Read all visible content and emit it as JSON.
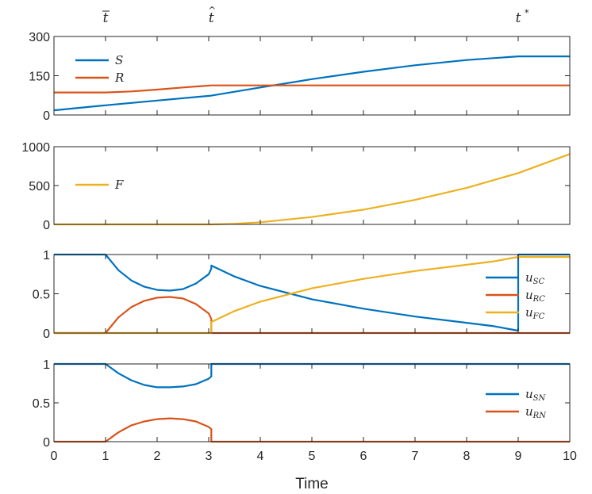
{
  "chart_data": {
    "type": "line",
    "xlabel": "Time",
    "xlim": [
      0,
      10
    ],
    "xticks": [
      0,
      1,
      2,
      3,
      4,
      5,
      6,
      7,
      8,
      9,
      10
    ],
    "top_markers": [
      {
        "name": "tbar",
        "label": "t",
        "accent": "bar",
        "x": 1
      },
      {
        "name": "that",
        "label": "t",
        "accent": "hat",
        "x": 3.05
      },
      {
        "name": "tstar",
        "label": "t",
        "accent": "*",
        "x": 9
      }
    ],
    "panels": [
      {
        "name": "populations",
        "ylim": [
          0,
          300
        ],
        "yticks": [
          0,
          150,
          300
        ],
        "yticklabels": [
          "0",
          "150",
          "300"
        ],
        "legend_position": "top-left",
        "series": [
          {
            "name": "S",
            "label": "S",
            "sub": "",
            "color": "#0072BD",
            "x": [
              0,
              1,
              2,
              3.05,
              4,
              5,
              6,
              7,
              8,
              9,
              10
            ],
            "y": [
              18,
              37,
              55,
              74,
              105,
              137,
              165,
              190,
              210,
              224,
              224
            ]
          },
          {
            "name": "R",
            "label": "R",
            "sub": "",
            "color": "#D95319",
            "x": [
              0,
              1,
              1.5,
              2,
              2.5,
              3.05,
              4,
              5,
              6,
              7,
              8,
              9,
              10
            ],
            "y": [
              86,
              86,
              90,
              97,
              105,
              113,
              113,
              113,
              113,
              113,
              113,
              113,
              113
            ]
          }
        ]
      },
      {
        "name": "fund",
        "ylim": [
          0,
          1000
        ],
        "yticks": [
          0,
          500,
          1000
        ],
        "yticklabels": [
          "0",
          "500",
          "1000"
        ],
        "legend_position": "middle-left",
        "series": [
          {
            "name": "F",
            "label": "F",
            "sub": "",
            "color": "#EDB120",
            "x": [
              0,
              1,
              2,
              3.05,
              3.5,
              4,
              5,
              6,
              7,
              8,
              9,
              10
            ],
            "y": [
              0,
              0,
              0,
              0,
              8,
              28,
              95,
              190,
              315,
              470,
              660,
              905
            ]
          }
        ]
      },
      {
        "name": "controls-C",
        "ylim": [
          0,
          1
        ],
        "yticks": [
          0,
          0.5,
          1
        ],
        "yticklabels": [
          "0",
          "0.5",
          "1"
        ],
        "legend_position": "right",
        "series": [
          {
            "name": "uSC",
            "label": "u",
            "sub": "SC",
            "color": "#0072BD",
            "x": [
              0,
              1,
              1.25,
              1.5,
              1.75,
              2,
              2.25,
              2.5,
              2.75,
              3,
              3.05,
              3.05,
              3.5,
              4,
              5,
              6,
              7,
              8,
              8.5,
              9,
              9,
              10
            ],
            "y": [
              1,
              1,
              0.8,
              0.67,
              0.59,
              0.55,
              0.54,
              0.56,
              0.63,
              0.75,
              0.82,
              0.86,
              0.72,
              0.6,
              0.43,
              0.31,
              0.21,
              0.13,
              0.09,
              0.03,
              1,
              1
            ]
          },
          {
            "name": "uRC",
            "label": "u",
            "sub": "RC",
            "color": "#D95319",
            "x": [
              0,
              1,
              1.25,
              1.5,
              1.75,
              2,
              2.25,
              2.5,
              2.75,
              3,
              3.05,
              3.05,
              10
            ],
            "y": [
              0,
              0,
              0.2,
              0.33,
              0.41,
              0.45,
              0.46,
              0.44,
              0.37,
              0.25,
              0.18,
              0,
              0
            ]
          },
          {
            "name": "uFC",
            "label": "u",
            "sub": "FC",
            "color": "#EDB120",
            "x": [
              0,
              3.05,
              3.05,
              3.5,
              4,
              5,
              6,
              7,
              8,
              8.5,
              9,
              10
            ],
            "y": [
              0,
              0,
              0.14,
              0.28,
              0.4,
              0.57,
              0.69,
              0.79,
              0.87,
              0.91,
              0.97,
              0.97
            ]
          }
        ]
      },
      {
        "name": "controls-N",
        "ylim": [
          0,
          1
        ],
        "yticks": [
          0,
          0.5,
          1
        ],
        "yticklabels": [
          "0",
          "0.5",
          "1"
        ],
        "legend_position": "right",
        "series": [
          {
            "name": "uSN",
            "label": "u",
            "sub": "SN",
            "color": "#0072BD",
            "x": [
              0,
              1,
              1.25,
              1.5,
              1.75,
              2,
              2.25,
              2.5,
              2.75,
              3,
              3.05,
              3.05,
              10
            ],
            "y": [
              1,
              1,
              0.88,
              0.79,
              0.73,
              0.7,
              0.7,
              0.71,
              0.74,
              0.81,
              0.84,
              1,
              1
            ]
          },
          {
            "name": "uRN",
            "label": "u",
            "sub": "RN",
            "color": "#D95319",
            "x": [
              0,
              1,
              1.25,
              1.5,
              1.75,
              2,
              2.25,
              2.5,
              2.75,
              3,
              3.05,
              3.05,
              10
            ],
            "y": [
              0,
              0,
              0.12,
              0.21,
              0.26,
              0.29,
              0.3,
              0.29,
              0.26,
              0.19,
              0.16,
              0,
              0
            ]
          }
        ]
      }
    ]
  }
}
